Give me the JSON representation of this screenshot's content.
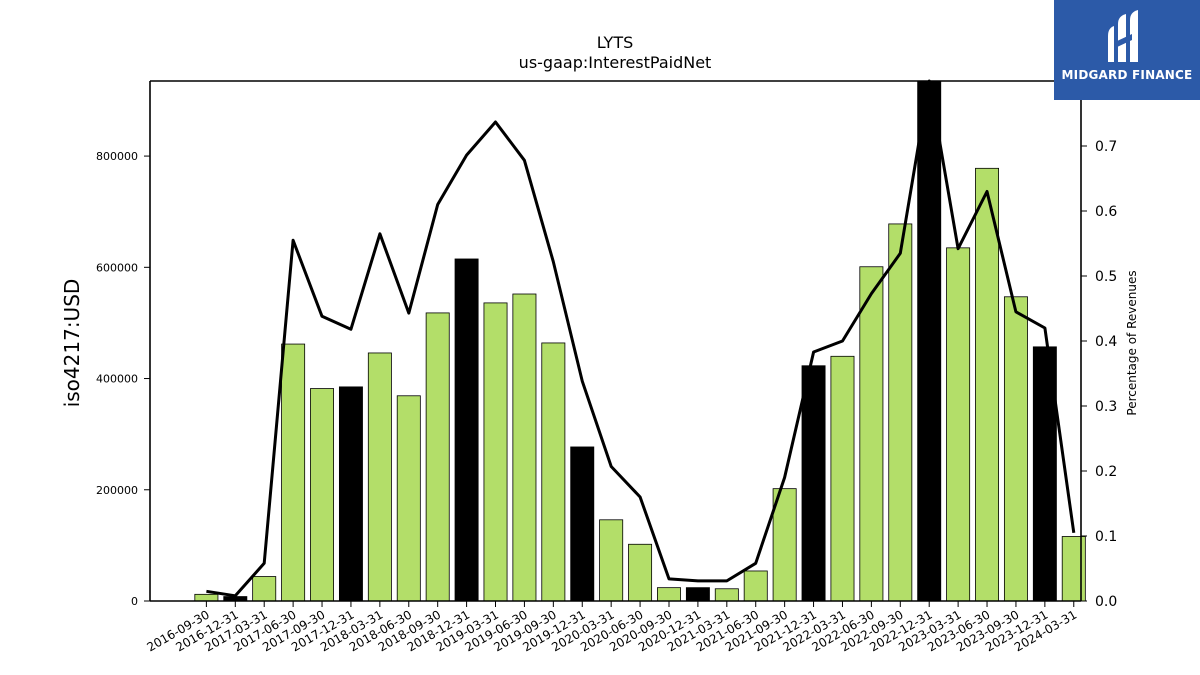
{
  "logo": {
    "text": "MIDGARD FINANCE",
    "bg_color": "#2c5aa8"
  },
  "chart_data": {
    "type": "bar",
    "title": "LYTS",
    "subtitle": "us-gaap:InterestPaidNet",
    "ylabel": "iso4217:USD",
    "y2label": "Percentage of Revenues",
    "ylim": [
      0,
      935000
    ],
    "y2lim": [
      0,
      0.8
    ],
    "yticks": [
      0,
      200000,
      400000,
      600000,
      800000
    ],
    "y2ticks": [
      0.0,
      0.1,
      0.2,
      0.3,
      0.4,
      0.5,
      0.6,
      0.7
    ],
    "y2tick_labels": [
      "0.0",
      "0.1",
      "0.2",
      "0.3",
      "0.4",
      "0.5",
      "0.6",
      "0.7"
    ],
    "categories": [
      "2016-09-30",
      "2016-12-31",
      "2017-03-31",
      "2017-06-30",
      "2017-09-30",
      "2017-12-31",
      "2018-03-31",
      "2018-06-30",
      "2018-09-30",
      "2018-12-31",
      "2019-03-31",
      "2019-06-30",
      "2019-09-30",
      "2019-12-31",
      "2020-03-31",
      "2020-06-30",
      "2020-09-30",
      "2020-12-31",
      "2021-03-31",
      "2021-06-30",
      "2021-09-30",
      "2021-12-31",
      "2022-03-31",
      "2022-06-30",
      "2022-09-30",
      "2022-12-31",
      "2023-03-31",
      "2023-06-30",
      "2023-09-30",
      "2023-12-31",
      "2024-03-31"
    ],
    "series": [
      {
        "type": "bar",
        "values": [
          12000,
          8000,
          44000,
          462000,
          382000,
          385000,
          446000,
          369000,
          518000,
          615000,
          536000,
          552000,
          464000,
          277000,
          146000,
          102000,
          24000,
          24000,
          22000,
          54000,
          202000,
          423000,
          440000,
          601000,
          678000,
          935000,
          635000,
          778000,
          547000,
          457000,
          116000
        ],
        "colors": [
          "#b3de69",
          "#000000",
          "#b3de69",
          "#b3de69",
          "#b3de69",
          "#000000",
          "#b3de69",
          "#b3de69",
          "#b3de69",
          "#000000",
          "#b3de69",
          "#b3de69",
          "#b3de69",
          "#000000",
          "#b3de69",
          "#b3de69",
          "#b3de69",
          "#000000",
          "#b3de69",
          "#b3de69",
          "#b3de69",
          "#000000",
          "#b3de69",
          "#b3de69",
          "#b3de69",
          "#000000",
          "#b3de69",
          "#b3de69",
          "#b3de69",
          "#000000",
          "#b3de69"
        ]
      },
      {
        "type": "line",
        "axis": "right",
        "values": [
          0.015,
          0.008,
          0.058,
          0.555,
          0.438,
          0.418,
          0.565,
          0.443,
          0.61,
          0.686,
          0.737,
          0.678,
          0.522,
          0.338,
          0.207,
          0.16,
          0.034,
          0.031,
          0.031,
          0.058,
          0.19,
          0.383,
          0.4,
          0.473,
          0.535,
          0.8,
          0.542,
          0.63,
          0.445,
          0.42,
          0.105
        ],
        "color": "#000000"
      }
    ]
  }
}
